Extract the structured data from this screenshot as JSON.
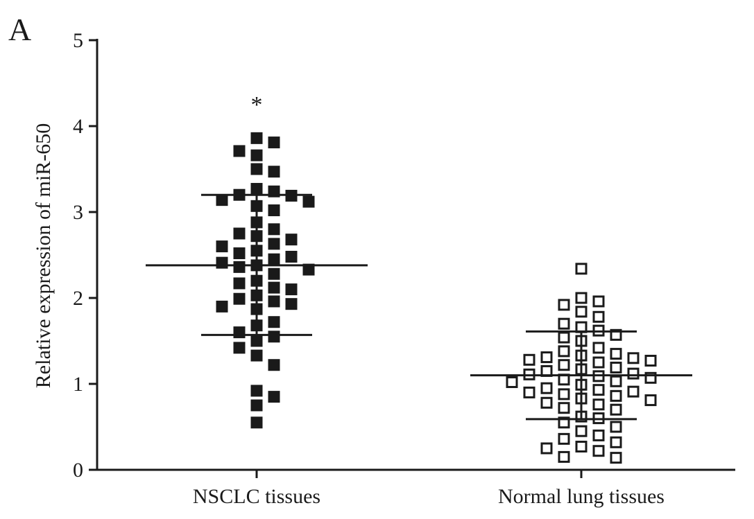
{
  "panel_label": "A",
  "chart_data": {
    "type": "scatter",
    "ylabel": "Relative expression of miR-650",
    "ylim": [
      0,
      5
    ],
    "yticks": [
      0,
      1,
      2,
      3,
      4,
      5
    ],
    "categories": [
      "NSCLC tissues",
      "Normal lung tissues"
    ],
    "annotation": "*",
    "series": [
      {
        "category": "NSCLC tissues",
        "marker": "filled-square",
        "mean": 2.38,
        "sd_upper": 3.2,
        "sd_lower": 1.57,
        "values": [
          3.86,
          3.81,
          3.71,
          3.66,
          3.5,
          3.47,
          3.27,
          3.24,
          3.2,
          3.19,
          3.14,
          3.12,
          3.07,
          3.02,
          2.88,
          2.8,
          2.75,
          2.72,
          2.68,
          2.63,
          2.6,
          2.55,
          2.52,
          2.48,
          2.45,
          2.41,
          2.38,
          2.36,
          2.33,
          2.28,
          2.2,
          2.17,
          2.12,
          2.1,
          2.03,
          1.99,
          1.96,
          1.93,
          1.9,
          1.87,
          1.72,
          1.68,
          1.6,
          1.55,
          1.5,
          1.42,
          1.33,
          1.22,
          0.92,
          0.85,
          0.75,
          0.55
        ]
      },
      {
        "category": "Normal lung tissues",
        "marker": "open-square",
        "mean": 1.1,
        "sd_upper": 1.61,
        "sd_lower": 0.59,
        "values": [
          2.34,
          2.0,
          1.96,
          1.92,
          1.84,
          1.78,
          1.7,
          1.66,
          1.62,
          1.57,
          1.54,
          1.5,
          1.42,
          1.38,
          1.35,
          1.33,
          1.31,
          1.3,
          1.28,
          1.27,
          1.25,
          1.22,
          1.19,
          1.17,
          1.15,
          1.12,
          1.11,
          1.09,
          1.07,
          1.05,
          1.03,
          1.02,
          0.99,
          0.95,
          0.93,
          0.91,
          0.9,
          0.88,
          0.86,
          0.83,
          0.81,
          0.78,
          0.76,
          0.72,
          0.7,
          0.62,
          0.6,
          0.55,
          0.5,
          0.45,
          0.4,
          0.36,
          0.32,
          0.27,
          0.25,
          0.22,
          0.15,
          0.14
        ]
      }
    ]
  }
}
